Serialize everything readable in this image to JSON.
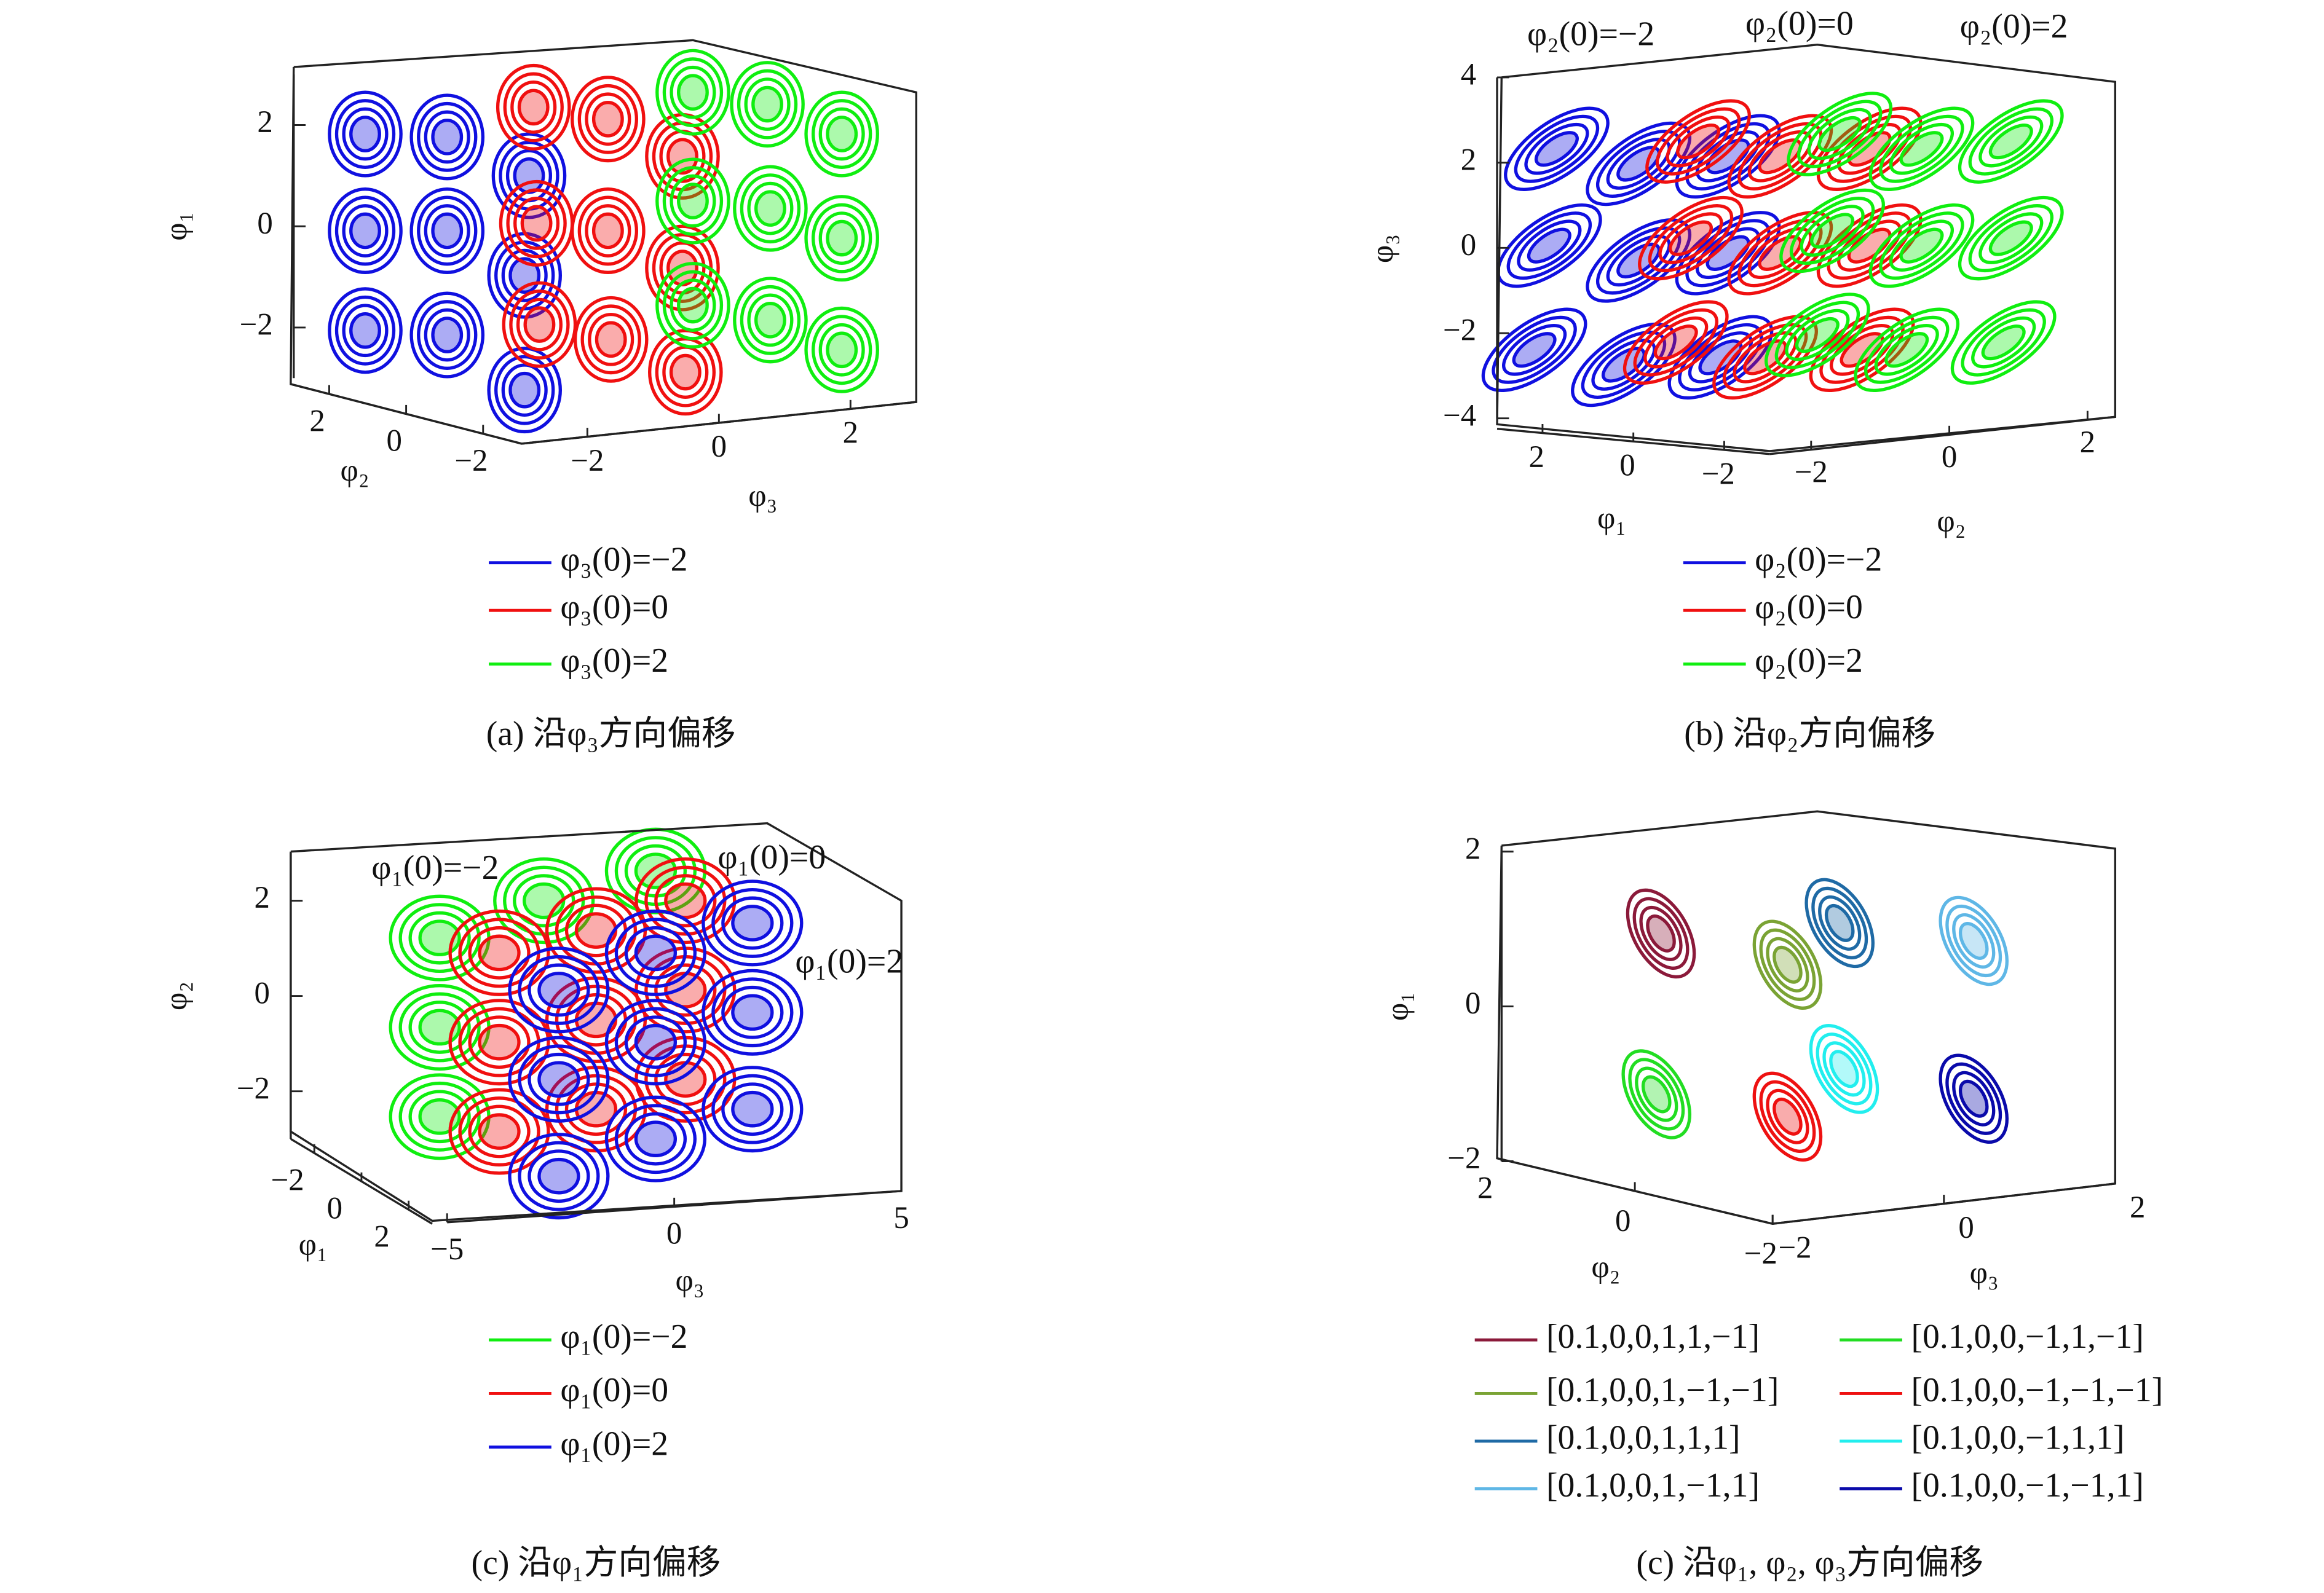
{
  "chart_data": [
    {
      "type": "line3d",
      "caption": "(a) 沿φ₃方向偏移",
      "xlabel": "φ₃",
      "ylabel": "φ₂",
      "zlabel": "φ₁",
      "xlim": [
        -3,
        3
      ],
      "xticks": [
        {
          "value": -2,
          "label": "−2"
        },
        0,
        2
      ],
      "ylim": [
        -3,
        3
      ],
      "yticks": [
        2,
        0,
        {
          "value": -2,
          "label": "−2"
        }
      ],
      "zlim": [
        -3,
        3
      ],
      "zticks": [
        {
          "value": -2,
          "label": "−2"
        },
        0,
        2
      ],
      "series": [
        {
          "name": "φ₃(0)=−2",
          "color": "#1010e0"
        },
        {
          "name": "φ₃(0)=0",
          "color": "#f01010"
        },
        {
          "name": "φ₃(0)=2",
          "color": "#10ee10"
        }
      ]
    },
    {
      "type": "line3d",
      "caption": "(b) 沿φ₂方向偏移",
      "xlabel": "φ₂",
      "ylabel": "φ₁",
      "zlabel": "φ₃",
      "xlim": [
        -2.6,
        2.4
      ],
      "xticks": [
        {
          "value": -2,
          "label": "−2"
        },
        0,
        2
      ],
      "ylim": [
        -3,
        3
      ],
      "yticks": [
        2,
        0,
        {
          "value": -2,
          "label": "−2"
        }
      ],
      "zlim": [
        -4,
        4
      ],
      "zticks": [
        {
          "value": -4,
          "label": "−4"
        },
        {
          "value": -2,
          "label": "−2"
        },
        0,
        2,
        4
      ],
      "annotations": [
        "φ₂(0)=−2",
        "φ₂(0)=0",
        "φ₂(0)=2"
      ],
      "series": [
        {
          "name": "φ₂(0)=−2",
          "color": "#1010e0"
        },
        {
          "name": "φ₂(0)=0",
          "color": "#f01010"
        },
        {
          "name": "φ₂(0)=2",
          "color": "#10ee10"
        }
      ]
    },
    {
      "type": "line3d",
      "caption": "(c) 沿φ₁方向偏移",
      "xlabel": "φ₃",
      "ylabel": "φ₁",
      "zlabel": "φ₂",
      "xlim": [
        -5,
        5
      ],
      "xticks": [
        {
          "value": -5,
          "label": "−5"
        },
        0,
        5
      ],
      "ylim": [
        -3,
        3
      ],
      "yticks": [
        {
          "value": -2,
          "label": "−2"
        },
        0,
        2
      ],
      "zlim": [
        -3,
        3
      ],
      "zticks": [
        {
          "value": -2,
          "label": "−2"
        },
        0,
        2
      ],
      "annotations": [
        "φ₁(0)=−2",
        "φ₁(0)=0",
        "φ₁(0)=2"
      ],
      "series": [
        {
          "name": "φ₁(0)=−2",
          "color": "#10ee10"
        },
        {
          "name": "φ₁(0)=0",
          "color": "#f01010"
        },
        {
          "name": "φ₁(0)=2",
          "color": "#1010e0"
        }
      ]
    },
    {
      "type": "line3d",
      "caption": "(c) 沿φ₁, φ₂, φ₃方向偏移",
      "xlabel": "φ₃",
      "ylabel": "φ₂",
      "zlabel": "φ₁",
      "xlim": [
        -2,
        2
      ],
      "xticks": [
        {
          "value": -2,
          "label": "−2"
        },
        0,
        2
      ],
      "ylim": [
        -2,
        2
      ],
      "yticks": [
        2,
        0,
        {
          "value": -2,
          "label": "−2"
        }
      ],
      "zlim": [
        -2,
        2
      ],
      "zticks": [
        {
          "value": -2,
          "label": "−2"
        },
        0,
        2
      ],
      "series": [
        {
          "name": "[0.1,0,0,1,1,−1]",
          "color": "#8b1a3a"
        },
        {
          "name": "[0.1,0,0,1,−1,−1]",
          "color": "#7aa334"
        },
        {
          "name": "[0.1,0,0,1,1,1]",
          "color": "#1f6aa5"
        },
        {
          "name": "[0.1,0,0,1,−1,1]",
          "color": "#5fb7e6"
        },
        {
          "name": "[0.1,0,0,−1,1,−1]",
          "color": "#22dd22"
        },
        {
          "name": "[0.1,0,0,−1,−1,−1]",
          "color": "#ee1111"
        },
        {
          "name": "[0.1,0,0,−1,1,1]",
          "color": "#22eeee"
        },
        {
          "name": "[0.1,0,0,−1,−1,1]",
          "color": "#0a0aaa"
        }
      ]
    }
  ]
}
